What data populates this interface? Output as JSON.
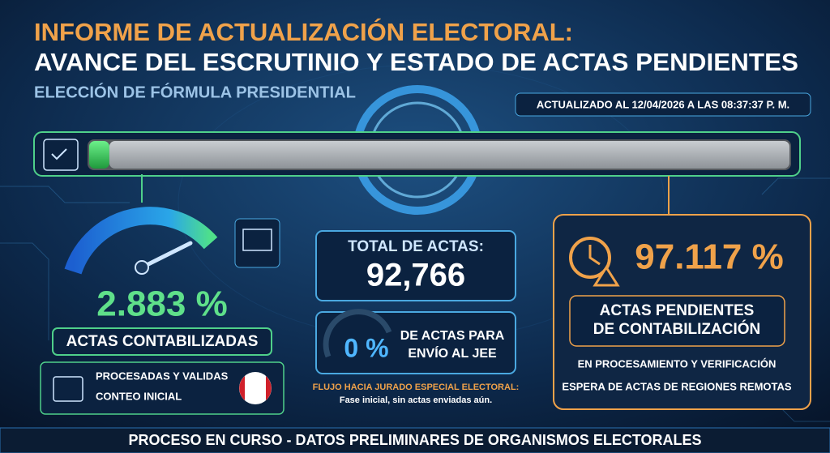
{
  "header": {
    "title_line1": "INFORME DE ACTUALIZACIÓN ELECTORAL:",
    "title_line2": "AVANCE DEL ESCRUTINIO Y ESTADO DE ACTAS PENDIENTES",
    "subtitle": "ELECCIÓN DE FÓRMULA PRESIDENTIAL",
    "updated": "ACTUALIZADO AL 12/04/2026 A LAS 08:37:37 P. M."
  },
  "counted": {
    "value": 2.883,
    "label": "2.883 %",
    "caption": "ACTAS CONTABILIZADAS",
    "detail_line1": "PROCESADAS Y VALIDAS",
    "detail_line2": "CONTEO INICIAL"
  },
  "total": {
    "label": "TOTAL DE ACTAS:",
    "value": "92,766"
  },
  "jee": {
    "value": "0 %",
    "line1": "DE ACTAS PARA",
    "line2": "ENVÍO AL JEE",
    "flow_title": "FLUJO HACIA JURADO ESPECIAL ELECTORAL:",
    "flow_note": "Fase inicial, sin actas enviadas aún."
  },
  "pending": {
    "value": 97.117,
    "label": "97.117 %",
    "caption_line1": "ACTAS PENDIENTES",
    "caption_line2": "DE CONTABILIZACIÓN",
    "note1": "EN PROCESAMIENTO Y VERIFICACIÓN",
    "note2": "ESPERA DE ACTAS DE REGIONES REMOTAS"
  },
  "footer": "PROCESO EN CURSO - DATOS PRELIMINARES DE ORGANISMOS ELECTORALES"
}
